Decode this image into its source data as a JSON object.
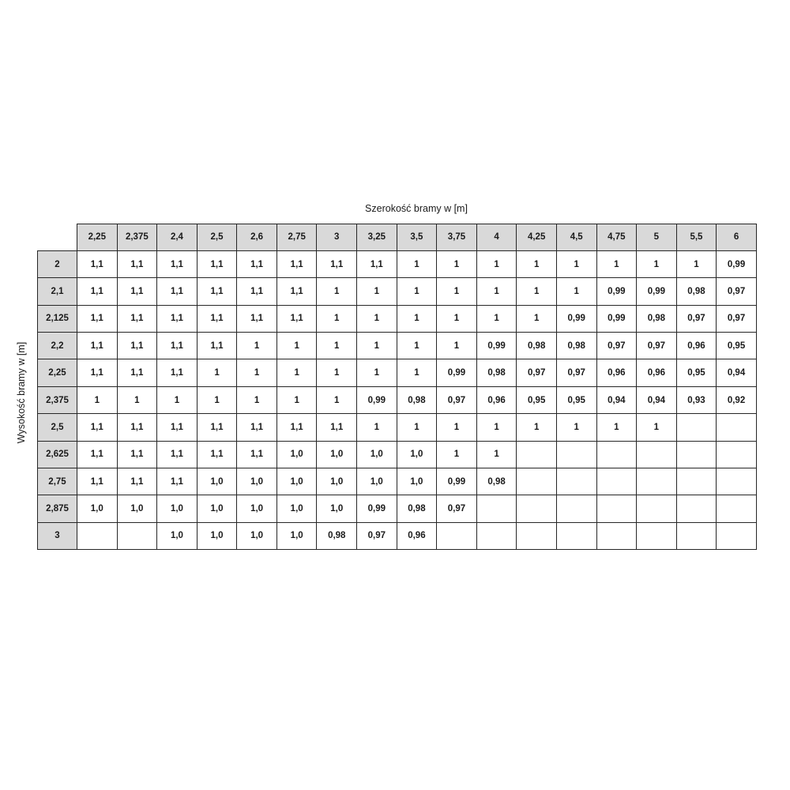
{
  "title": "Szerokość bramy w [m]",
  "y_axis_label": "Wysokość bramy w [m]",
  "colors": {
    "header_bg": "#d9d9d9",
    "cell_bg": "#ffffff",
    "border": "#262626",
    "text": "#1a1a1a"
  },
  "chart_data": {
    "type": "table",
    "title": "Szerokość bramy w [m]",
    "ylabel": "Wysokość bramy w [m]",
    "columns": [
      "2,25",
      "2,375",
      "2,4",
      "2,5",
      "2,6",
      "2,75",
      "3",
      "3,25",
      "3,5",
      "3,75",
      "4",
      "4,25",
      "4,5",
      "4,75",
      "5",
      "5,5",
      "6"
    ],
    "rows": [
      {
        "label": "2",
        "values": [
          "1,1",
          "1,1",
          "1,1",
          "1,1",
          "1,1",
          "1,1",
          "1,1",
          "1,1",
          "1",
          "1",
          "1",
          "1",
          "1",
          "1",
          "1",
          "1",
          "0,99"
        ]
      },
      {
        "label": "2,1",
        "values": [
          "1,1",
          "1,1",
          "1,1",
          "1,1",
          "1,1",
          "1,1",
          "1",
          "1",
          "1",
          "1",
          "1",
          "1",
          "1",
          "0,99",
          "0,99",
          "0,98",
          "0,97"
        ]
      },
      {
        "label": "2,125",
        "values": [
          "1,1",
          "1,1",
          "1,1",
          "1,1",
          "1,1",
          "1,1",
          "1",
          "1",
          "1",
          "1",
          "1",
          "1",
          "0,99",
          "0,99",
          "0,98",
          "0,97",
          "0,97"
        ]
      },
      {
        "label": "2,2",
        "values": [
          "1,1",
          "1,1",
          "1,1",
          "1,1",
          "1",
          "1",
          "1",
          "1",
          "1",
          "1",
          "0,99",
          "0,98",
          "0,98",
          "0,97",
          "0,97",
          "0,96",
          "0,95"
        ]
      },
      {
        "label": "2,25",
        "values": [
          "1,1",
          "1,1",
          "1,1",
          "1",
          "1",
          "1",
          "1",
          "1",
          "1",
          "0,99",
          "0,98",
          "0,97",
          "0,97",
          "0,96",
          "0,96",
          "0,95",
          "0,94"
        ]
      },
      {
        "label": "2,375",
        "values": [
          "1",
          "1",
          "1",
          "1",
          "1",
          "1",
          "1",
          "0,99",
          "0,98",
          "0,97",
          "0,96",
          "0,95",
          "0,95",
          "0,94",
          "0,94",
          "0,93",
          "0,92"
        ]
      },
      {
        "label": "2,5",
        "values": [
          "1,1",
          "1,1",
          "1,1",
          "1,1",
          "1,1",
          "1,1",
          "1,1",
          "1",
          "1",
          "1",
          "1",
          "1",
          "1",
          "1",
          "1",
          "",
          ""
        ]
      },
      {
        "label": "2,625",
        "values": [
          "1,1",
          "1,1",
          "1,1",
          "1,1",
          "1,1",
          "1,0",
          "1,0",
          "1,0",
          "1,0",
          "1",
          "1",
          "",
          "",
          "",
          "",
          "",
          ""
        ]
      },
      {
        "label": "2,75",
        "values": [
          "1,1",
          "1,1",
          "1,1",
          "1,0",
          "1,0",
          "1,0",
          "1,0",
          "1,0",
          "1,0",
          "0,99",
          "0,98",
          "",
          "",
          "",
          "",
          "",
          ""
        ]
      },
      {
        "label": "2,875",
        "values": [
          "1,0",
          "1,0",
          "1,0",
          "1,0",
          "1,0",
          "1,0",
          "1,0",
          "0,99",
          "0,98",
          "0,97",
          "",
          "",
          "",
          "",
          "",
          "",
          ""
        ]
      },
      {
        "label": "3",
        "values": [
          "",
          "",
          "1,0",
          "1,0",
          "1,0",
          "1,0",
          "0,98",
          "0,97",
          "0,96",
          "",
          "",
          "",
          "",
          "",
          "",
          "",
          ""
        ]
      }
    ]
  }
}
